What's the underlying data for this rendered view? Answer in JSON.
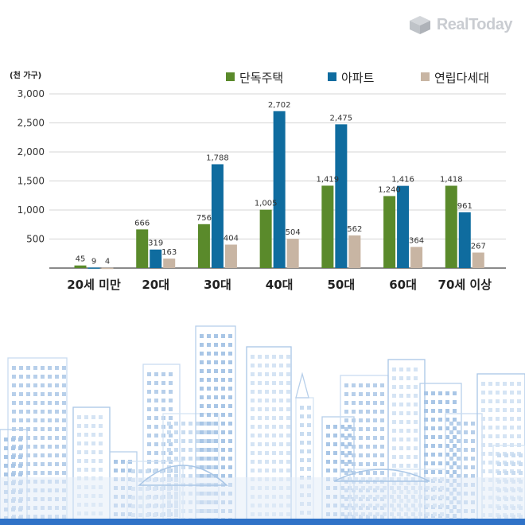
{
  "brand": {
    "name": "RealToday"
  },
  "chart_data": {
    "type": "bar",
    "unit_label": "(천 가구)",
    "categories": [
      "20세 미만",
      "20대",
      "30대",
      "40대",
      "50대",
      "60대",
      "70세 이상"
    ],
    "series": [
      {
        "name": "단독주택",
        "color": "#5a8a2b",
        "values": [
          45,
          666,
          756,
          1005,
          1419,
          1240,
          1418
        ]
      },
      {
        "name": "아파트",
        "color": "#0f6c9f",
        "values": [
          9,
          319,
          1788,
          2702,
          2475,
          1416,
          961
        ]
      },
      {
        "name": "연립다세대",
        "color": "#c8b5a3",
        "values": [
          4,
          163,
          404,
          504,
          562,
          364,
          267
        ]
      }
    ],
    "value_labels": [
      [
        "45",
        "666",
        "756",
        "1,005",
        "1,419",
        "1,240",
        "1,418"
      ],
      [
        "9",
        "319",
        "1,788",
        "2,702",
        "2,475",
        "1,416",
        "961"
      ],
      [
        "4",
        "163",
        "404",
        "504",
        "562",
        "364",
        "267"
      ]
    ],
    "yticks": [
      500,
      1000,
      1500,
      2000,
      2500,
      3000
    ],
    "ytick_labels": [
      "500",
      "1,000",
      "1,500",
      "2,000",
      "2,500",
      "3,000"
    ],
    "ylim": [
      0,
      3000
    ],
    "grid": true,
    "legend_position": "top-right"
  }
}
